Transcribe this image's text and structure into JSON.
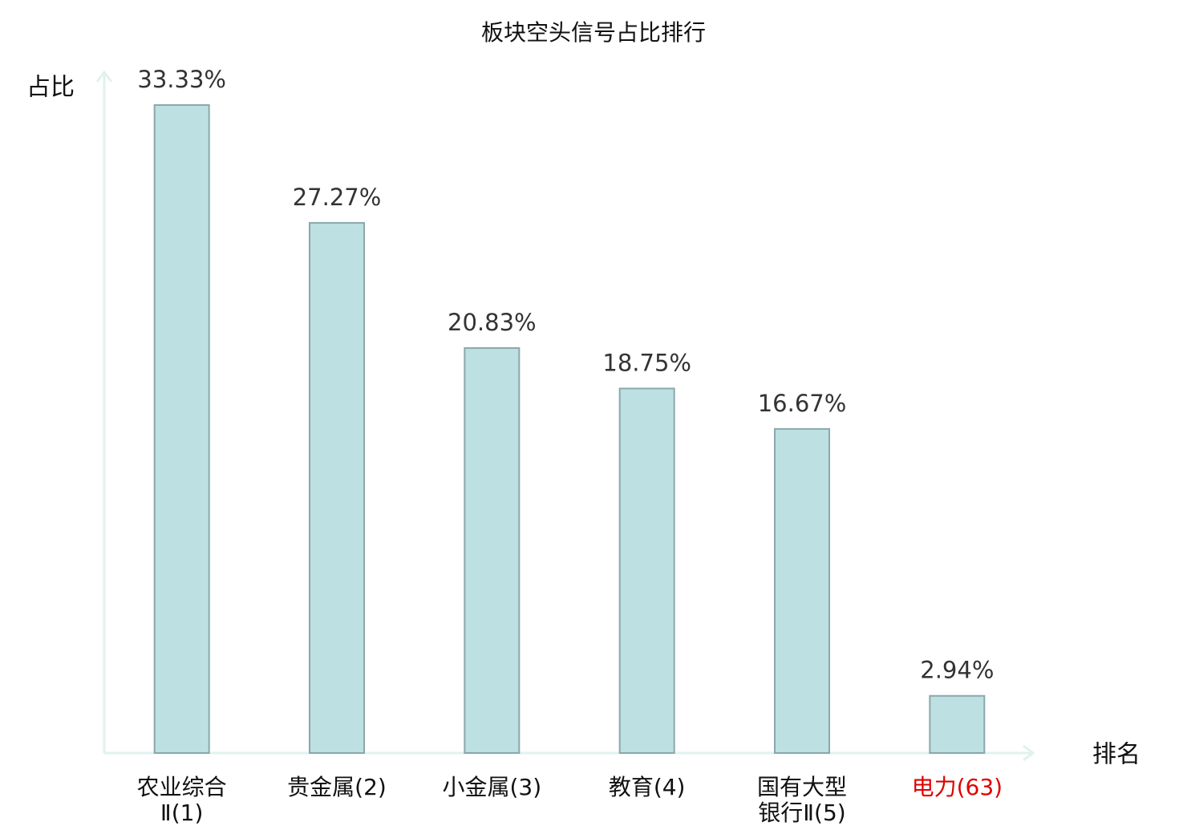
{
  "chart_data": {
    "type": "bar",
    "title": "板块空头信号占比排行",
    "y_label": "占比",
    "x_label": "排名",
    "categories": [
      "农业综合Ⅱ(1)",
      "贵金属(2)",
      "小金属(3)",
      "教育(4)",
      "国有大型银行Ⅱ(5)",
      "电力(63)"
    ],
    "category_colors": [
      "#111111",
      "#111111",
      "#111111",
      "#111111",
      "#111111",
      "#e00000"
    ],
    "values": [
      33.33,
      27.27,
      20.83,
      18.75,
      16.67,
      2.94
    ],
    "value_labels": [
      "33.33%",
      "27.27%",
      "20.83%",
      "18.75%",
      "16.67%",
      "2.94%"
    ],
    "color": "#bde0e2",
    "edge_color": "#8aa8aa",
    "axis_color": "#e0f2ef"
  }
}
